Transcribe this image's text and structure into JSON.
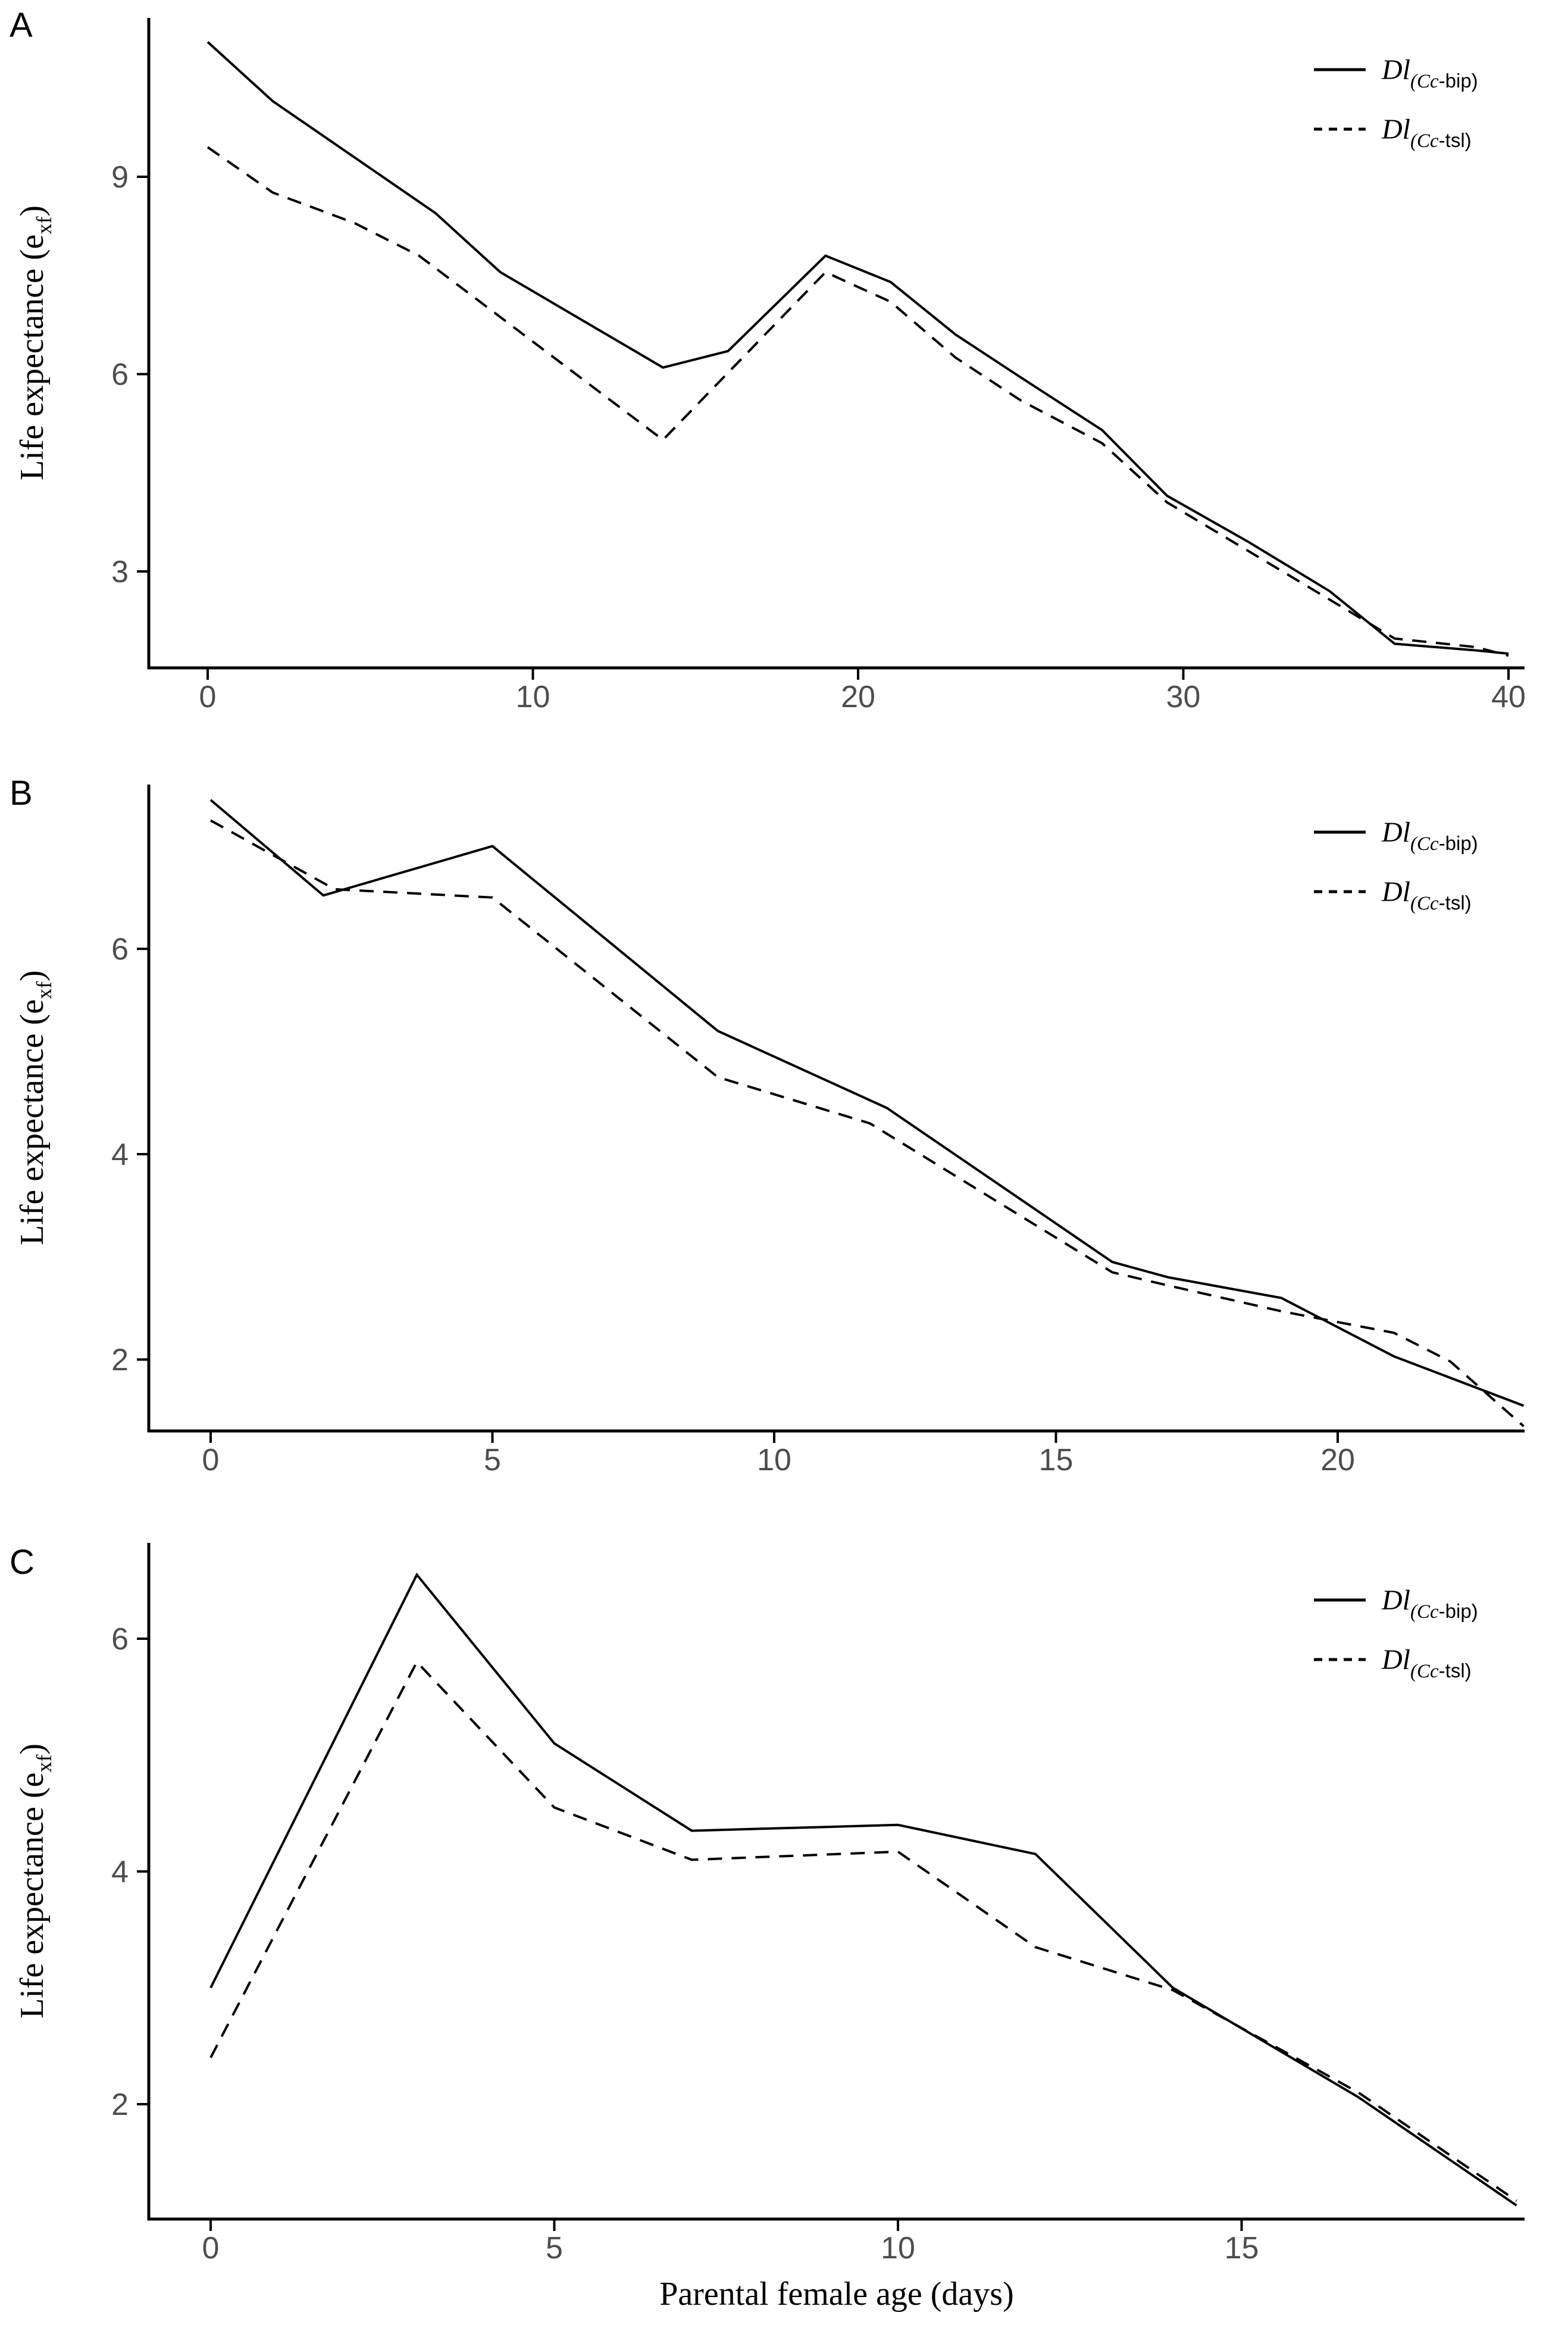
{
  "figure": {
    "xlabel": "Parental female age (days)",
    "background": "#ffffff",
    "line_color": "#000000",
    "tick_label_color": "#4d4d4d",
    "panel_letter_color": "#000000",
    "legend_position": "top-right",
    "grid": false
  },
  "chart_data": [
    {
      "type": "line",
      "panel": "A",
      "ylabel_main": "Life expectance (e",
      "ylabel_sub": "xf",
      "ylabel_close": ")",
      "xlim": [
        0,
        40
      ],
      "ylim": [
        1.1,
        11.5
      ],
      "x_ticks": [
        0,
        10,
        20,
        30,
        40
      ],
      "y_ticks": [
        3,
        6,
        9
      ],
      "series": [
        {
          "name": "Dl (Cc-bip)",
          "label_main": "Dl",
          "label_sub_italic": "(Cc",
          "label_sub_plain": "-bip)",
          "style": "solid",
          "points": [
            [
              0,
              11.05
            ],
            [
              2,
              10.15
            ],
            [
              7,
              8.45
            ],
            [
              9,
              7.55
            ],
            [
              14,
              6.1
            ],
            [
              16,
              6.35
            ],
            [
              19,
              7.8
            ],
            [
              21,
              7.4
            ],
            [
              23,
              6.6
            ],
            [
              25,
              5.95
            ],
            [
              27.5,
              5.15
            ],
            [
              29.5,
              4.15
            ],
            [
              32,
              3.45
            ],
            [
              34.5,
              2.7
            ],
            [
              36.5,
              1.9
            ],
            [
              39,
              1.8
            ],
            [
              40,
              1.75
            ]
          ]
        },
        {
          "name": "Dl (Cc-tsl)",
          "label_main": "Dl",
          "label_sub_italic": "(Cc",
          "label_sub_plain": "-tsl)",
          "style": "dashed",
          "points": [
            [
              0,
              9.45
            ],
            [
              2,
              8.76
            ],
            [
              4.5,
              8.3
            ],
            [
              6.5,
              7.8
            ],
            [
              14,
              5.0
            ],
            [
              19,
              7.55
            ],
            [
              21,
              7.1
            ],
            [
              23,
              6.25
            ],
            [
              25,
              5.6
            ],
            [
              27.5,
              4.95
            ],
            [
              29.5,
              4.05
            ],
            [
              36.5,
              1.98
            ],
            [
              39,
              1.85
            ],
            [
              40,
              1.72
            ]
          ]
        }
      ]
    },
    {
      "type": "line",
      "panel": "B",
      "ylabel_main": "Life expectance (e",
      "ylabel_sub": "xf",
      "ylabel_close": ")",
      "xlim": [
        0,
        23.3
      ],
      "ylim": [
        1.3,
        7.6
      ],
      "x_ticks": [
        0,
        5,
        10,
        15,
        20
      ],
      "y_ticks": [
        2,
        4,
        6
      ],
      "series": [
        {
          "name": "Dl (Cc-bip)",
          "label_main": "Dl",
          "label_sub_italic": "(Cc",
          "label_sub_plain": "-bip)",
          "style": "solid",
          "points": [
            [
              0,
              7.45
            ],
            [
              2,
              6.52
            ],
            [
              5,
              7.0
            ],
            [
              9,
              5.2
            ],
            [
              12,
              4.45
            ],
            [
              16,
              2.95
            ],
            [
              17,
              2.8
            ],
            [
              19,
              2.6
            ],
            [
              21,
              2.03
            ],
            [
              23.3,
              1.55
            ]
          ]
        },
        {
          "name": "Dl (Cc-tsl)",
          "label_main": "Dl",
          "label_sub_italic": "(Cc",
          "label_sub_plain": "-tsl)",
          "style": "dashed",
          "points": [
            [
              0,
              7.25
            ],
            [
              2.2,
              6.58
            ],
            [
              5,
              6.5
            ],
            [
              9,
              4.75
            ],
            [
              11.7,
              4.3
            ],
            [
              16,
              2.85
            ],
            [
              17,
              2.72
            ],
            [
              19,
              2.47
            ],
            [
              21,
              2.26
            ],
            [
              22,
              1.98
            ],
            [
              23.3,
              1.35
            ]
          ]
        }
      ]
    },
    {
      "type": "line",
      "panel": "C",
      "ylabel_main": "Life expectance (e",
      "ylabel_sub": "xf",
      "ylabel_close": ")",
      "xlim": [
        0,
        19
      ],
      "ylim": [
        1.0,
        6.9
      ],
      "x_ticks": [
        0,
        5,
        10,
        15
      ],
      "y_ticks": [
        2,
        4,
        6
      ],
      "series": [
        {
          "name": "Dl (Cc-bip)",
          "label_main": "Dl",
          "label_sub_italic": "(Cc",
          "label_sub_plain": "-bip)",
          "style": "solid",
          "points": [
            [
              0,
              3.0
            ],
            [
              3,
              6.55
            ],
            [
              5,
              5.1
            ],
            [
              7,
              4.35
            ],
            [
              10,
              4.4
            ],
            [
              12,
              4.15
            ],
            [
              14,
              3.0
            ],
            [
              16.7,
              2.06
            ],
            [
              19,
              1.13
            ]
          ]
        },
        {
          "name": "Dl (Cc-tsl)",
          "label_main": "Dl",
          "label_sub_italic": "(Cc",
          "label_sub_plain": "-tsl)",
          "style": "dashed",
          "points": [
            [
              0,
              2.4
            ],
            [
              3,
              5.8
            ],
            [
              5,
              4.55
            ],
            [
              7,
              4.1
            ],
            [
              10,
              4.17
            ],
            [
              12,
              3.35
            ],
            [
              14,
              2.98
            ],
            [
              16.7,
              2.1
            ],
            [
              19,
              1.17
            ]
          ]
        }
      ]
    }
  ]
}
